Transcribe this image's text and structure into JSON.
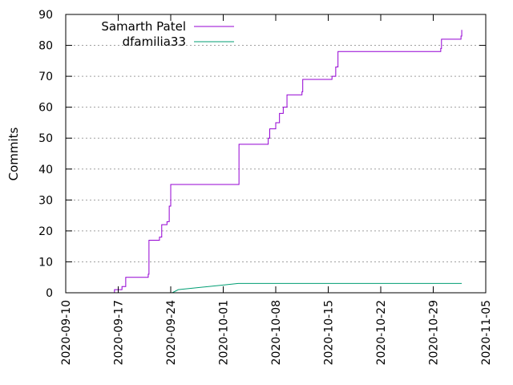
{
  "chart_data": {
    "type": "line",
    "title": "",
    "xlabel": "",
    "ylabel": "Commits",
    "ylim": [
      0,
      90
    ],
    "xlim": [
      "2020-09-10",
      "2020-11-05"
    ],
    "yticks": [
      "0",
      "10",
      "20",
      "30",
      "40",
      "50",
      "60",
      "70",
      "80",
      "90"
    ],
    "xticks": [
      "2020-09-10",
      "2020-09-17",
      "2020-09-24",
      "2020-10-01",
      "2020-10-08",
      "2020-10-15",
      "2020-10-22",
      "2020-10-29",
      "2020-11-05"
    ],
    "grid": "horizontal dotted",
    "legend_position": "top-left",
    "series": [
      {
        "name": "Samarth Patel",
        "color": "#9400d3",
        "step": true,
        "x": [
          "2020-09-16",
          "2020-09-16.5",
          "2020-09-17.5",
          "2020-09-18.0",
          "2020-09-18.2",
          "2020-09-21.0",
          "2020-09-21.1",
          "2020-09-21.5",
          "2020-09-22.5",
          "2020-09-22.8",
          "2020-09-23.5",
          "2020-09-23.8",
          "2020-09-24.0",
          "2020-10-03.0",
          "2020-10-03.1",
          "2020-10-07.0",
          "2020-10-07.2",
          "2020-10-08.0",
          "2020-10-08.5",
          "2020-10-09.0",
          "2020-10-09.5",
          "2020-10-11.5",
          "2020-10-11.6",
          "2020-10-15.5",
          "2020-10-16.0",
          "2020-10-16.3",
          "2020-10-30.0",
          "2020-10-30.1",
          "2020-11-01.7",
          "2020-11-01.8"
        ],
        "y": [
          0,
          1,
          2,
          5,
          5,
          6,
          17,
          17,
          18,
          22,
          23,
          28,
          35,
          35,
          48,
          50,
          53,
          55,
          58,
          60,
          64,
          65,
          69,
          70,
          73,
          78,
          79,
          82,
          83,
          85
        ]
      },
      {
        "name": "dfamilia33",
        "color": "#009e73",
        "step": false,
        "x": [
          "2020-09-24.2",
          "2020-09-25.0",
          "2020-10-01.0",
          "2020-10-03.0",
          "2020-11-01.8"
        ],
        "y": [
          0,
          1,
          2.5,
          3,
          3
        ]
      }
    ]
  }
}
